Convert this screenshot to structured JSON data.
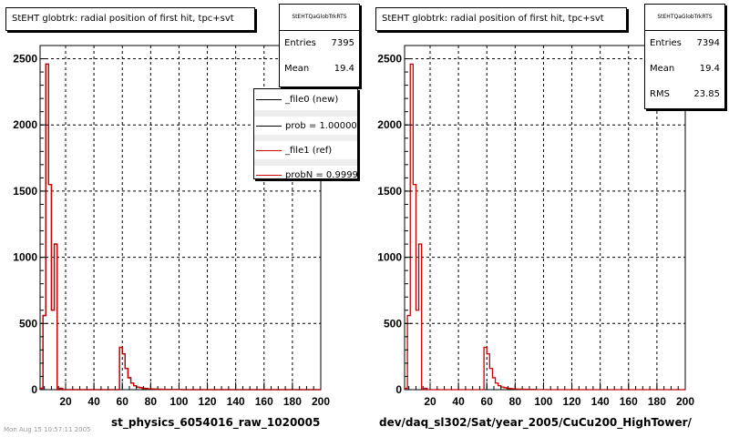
{
  "panels": [
    {
      "title": "StEHT globtrk: radial position of first hit, tpc+svt",
      "xlabel": "st_physics_6054016_raw_1020005",
      "stats": {
        "header": "StEHTQaGlobTrkRTS",
        "rows": [
          {
            "label": "Entries",
            "value": "7395"
          },
          {
            "label": "Mean",
            "value": "19.4"
          }
        ]
      },
      "legend": [
        {
          "label": "_file0 (new)",
          "color": "#000000"
        },
        {
          "label": "prob = 1.000000",
          "color": "#000000"
        },
        {
          "label": "_file1 (ref)",
          "color": "#cc0000"
        },
        {
          "label": "probN = 0.999974",
          "color": "#cc0000"
        }
      ]
    },
    {
      "title": "StEHT globtrk: radial position of first hit, tpc+svt",
      "xlabel": "dev/daq_sl302/Sat/year_2005/CuCu200_HighTower/",
      "stats": {
        "header": "StEHTQaGlobTrkRTS",
        "rows": [
          {
            "label": "Entries",
            "value": "7394"
          },
          {
            "label": "Mean",
            "value": "19.4"
          },
          {
            "label": "RMS",
            "value": "23.85"
          }
        ]
      },
      "legend": []
    }
  ],
  "corner_text": "Mon Aug 15 10:57:11 2005",
  "chart_data": [
    {
      "type": "bar",
      "title": "StEHT globtrk: radial position of first hit, tpc+svt",
      "xlabel": "st_physics_6054016_raw_1020005",
      "ylabel": "",
      "xlim": [
        2,
        200
      ],
      "ylim": [
        0,
        2600
      ],
      "xticks": [
        20,
        40,
        60,
        80,
        100,
        120,
        140,
        160,
        180,
        200
      ],
      "yticks": [
        0,
        500,
        1000,
        1500,
        2000,
        2500
      ],
      "grid": true,
      "bin_width": 2,
      "series": [
        {
          "name": "_file0 (new)",
          "color": "#000000",
          "bins": [
            [
              2,
              10
            ],
            [
              4,
              560
            ],
            [
              6,
              2460
            ],
            [
              8,
              1550
            ],
            [
              10,
              600
            ],
            [
              12,
              1100
            ],
            [
              14,
              0
            ],
            [
              16,
              10
            ],
            [
              18,
              0
            ],
            [
              20,
              0
            ],
            [
              22,
              0
            ],
            [
              24,
              0
            ],
            [
              26,
              0
            ],
            [
              28,
              0
            ],
            [
              30,
              0
            ],
            [
              32,
              0
            ],
            [
              34,
              0
            ],
            [
              36,
              0
            ],
            [
              38,
              0
            ],
            [
              40,
              0
            ],
            [
              42,
              0
            ],
            [
              44,
              0
            ],
            [
              46,
              0
            ],
            [
              48,
              0
            ],
            [
              50,
              0
            ],
            [
              52,
              0
            ],
            [
              54,
              0
            ],
            [
              56,
              0
            ],
            [
              58,
              320
            ],
            [
              60,
              270
            ],
            [
              62,
              160
            ],
            [
              64,
              90
            ],
            [
              66,
              50
            ],
            [
              68,
              30
            ],
            [
              70,
              20
            ],
            [
              72,
              15
            ],
            [
              74,
              10
            ],
            [
              76,
              8
            ],
            [
              78,
              6
            ],
            [
              80,
              5
            ],
            [
              82,
              4
            ],
            [
              84,
              3
            ],
            [
              86,
              3
            ],
            [
              88,
              2
            ],
            [
              90,
              2
            ],
            [
              92,
              2
            ],
            [
              94,
              1
            ],
            [
              96,
              1
            ],
            [
              98,
              1
            ],
            [
              100,
              1
            ]
          ]
        },
        {
          "name": "_file1 (ref)",
          "color": "#cc0000",
          "bins": [
            [
              2,
              10
            ],
            [
              4,
              560
            ],
            [
              6,
              2460
            ],
            [
              8,
              1550
            ],
            [
              10,
              600
            ],
            [
              12,
              1100
            ],
            [
              14,
              0
            ],
            [
              16,
              10
            ],
            [
              18,
              0
            ],
            [
              20,
              0
            ],
            [
              22,
              0
            ],
            [
              24,
              0
            ],
            [
              26,
              0
            ],
            [
              28,
              0
            ],
            [
              30,
              0
            ],
            [
              32,
              0
            ],
            [
              34,
              0
            ],
            [
              36,
              0
            ],
            [
              38,
              0
            ],
            [
              40,
              0
            ],
            [
              42,
              0
            ],
            [
              44,
              0
            ],
            [
              46,
              0
            ],
            [
              48,
              0
            ],
            [
              50,
              0
            ],
            [
              52,
              0
            ],
            [
              54,
              0
            ],
            [
              56,
              0
            ],
            [
              58,
              320
            ],
            [
              60,
              270
            ],
            [
              62,
              160
            ],
            [
              64,
              90
            ],
            [
              66,
              50
            ],
            [
              68,
              30
            ],
            [
              70,
              20
            ],
            [
              72,
              15
            ],
            [
              74,
              10
            ],
            [
              76,
              8
            ],
            [
              78,
              6
            ],
            [
              80,
              5
            ],
            [
              82,
              4
            ],
            [
              84,
              3
            ],
            [
              86,
              3
            ],
            [
              88,
              2
            ],
            [
              90,
              2
            ],
            [
              92,
              2
            ],
            [
              94,
              1
            ],
            [
              96,
              1
            ],
            [
              98,
              1
            ],
            [
              100,
              1
            ]
          ]
        }
      ]
    },
    {
      "type": "bar",
      "title": "StEHT globtrk: radial position of first hit, tpc+svt",
      "xlabel": "dev/daq_sl302/Sat/year_2005/CuCu200_HighTower/",
      "ylabel": "",
      "xlim": [
        2,
        200
      ],
      "ylim": [
        0,
        2600
      ],
      "xticks": [
        20,
        40,
        60,
        80,
        100,
        120,
        140,
        160,
        180,
        200
      ],
      "yticks": [
        0,
        500,
        1000,
        1500,
        2000,
        2500
      ],
      "grid": true,
      "bin_width": 2,
      "series": [
        {
          "name": "",
          "color": "#cc0000",
          "bins": [
            [
              2,
              10
            ],
            [
              4,
              560
            ],
            [
              6,
              2460
            ],
            [
              8,
              1550
            ],
            [
              10,
              600
            ],
            [
              12,
              1100
            ],
            [
              14,
              0
            ],
            [
              16,
              10
            ],
            [
              18,
              0
            ],
            [
              20,
              0
            ],
            [
              22,
              0
            ],
            [
              24,
              0
            ],
            [
              26,
              0
            ],
            [
              28,
              0
            ],
            [
              30,
              0
            ],
            [
              32,
              0
            ],
            [
              34,
              0
            ],
            [
              36,
              0
            ],
            [
              38,
              0
            ],
            [
              40,
              0
            ],
            [
              42,
              0
            ],
            [
              44,
              0
            ],
            [
              46,
              0
            ],
            [
              48,
              0
            ],
            [
              50,
              0
            ],
            [
              52,
              0
            ],
            [
              54,
              0
            ],
            [
              56,
              0
            ],
            [
              58,
              320
            ],
            [
              60,
              270
            ],
            [
              62,
              160
            ],
            [
              64,
              90
            ],
            [
              66,
              50
            ],
            [
              68,
              30
            ],
            [
              70,
              20
            ],
            [
              72,
              15
            ],
            [
              74,
              10
            ],
            [
              76,
              8
            ],
            [
              78,
              6
            ],
            [
              80,
              5
            ],
            [
              82,
              4
            ],
            [
              84,
              3
            ],
            [
              86,
              3
            ],
            [
              88,
              2
            ],
            [
              90,
              2
            ],
            [
              92,
              2
            ],
            [
              94,
              1
            ],
            [
              96,
              1
            ],
            [
              98,
              1
            ],
            [
              100,
              1
            ]
          ]
        }
      ]
    }
  ]
}
